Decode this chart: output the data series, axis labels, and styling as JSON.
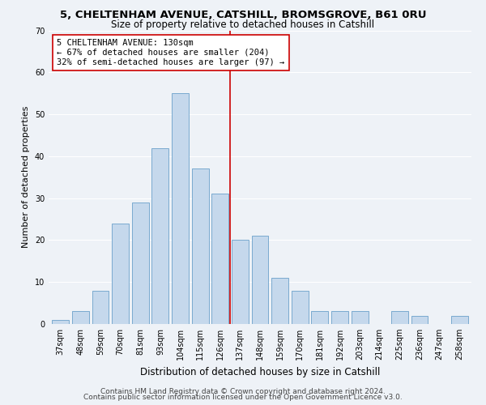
{
  "title": "5, CHELTENHAM AVENUE, CATSHILL, BROMSGROVE, B61 0RU",
  "subtitle": "Size of property relative to detached houses in Catshill",
  "xlabel": "Distribution of detached houses by size in Catshill",
  "ylabel": "Number of detached properties",
  "bar_labels": [
    "37sqm",
    "48sqm",
    "59sqm",
    "70sqm",
    "81sqm",
    "93sqm",
    "104sqm",
    "115sqm",
    "126sqm",
    "137sqm",
    "148sqm",
    "159sqm",
    "170sqm",
    "181sqm",
    "192sqm",
    "203sqm",
    "214sqm",
    "225sqm",
    "236sqm",
    "247sqm",
    "258sqm"
  ],
  "bar_values": [
    1,
    3,
    8,
    24,
    29,
    42,
    55,
    37,
    31,
    20,
    21,
    11,
    8,
    3,
    3,
    3,
    0,
    3,
    2,
    0,
    2
  ],
  "bar_color": "#c5d8ec",
  "bar_edge_color": "#7aaacf",
  "vline_x": 8.5,
  "vline_color": "#cc0000",
  "ylim": [
    0,
    70
  ],
  "yticks": [
    0,
    10,
    20,
    30,
    40,
    50,
    60,
    70
  ],
  "annotation_title": "5 CHELTENHAM AVENUE: 130sqm",
  "annotation_line1": "← 67% of detached houses are smaller (204)",
  "annotation_line2": "32% of semi-detached houses are larger (97) →",
  "annotation_box_color": "#ffffff",
  "annotation_box_edge": "#cc0000",
  "footer1": "Contains HM Land Registry data © Crown copyright and database right 2024.",
  "footer2": "Contains public sector information licensed under the Open Government Licence v3.0.",
  "background_color": "#eef2f7",
  "grid_color": "#ffffff",
  "title_fontsize": 9.5,
  "subtitle_fontsize": 8.5,
  "ylabel_fontsize": 8,
  "xlabel_fontsize": 8.5,
  "tick_fontsize": 7,
  "footer_fontsize": 6.5,
  "annotation_fontsize": 7.5
}
